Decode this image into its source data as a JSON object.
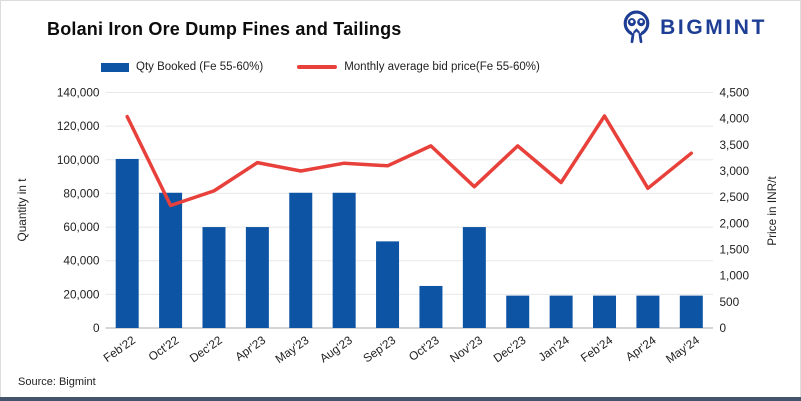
{
  "header": {
    "title": "Bolani Iron Ore Dump Fines and Tailings",
    "brand_name": "BIGMINT"
  },
  "chart_data": {
    "type": "combo",
    "title": "Bolani Iron Ore Dump Fines and Tailings",
    "categories": [
      "Feb'22",
      "Oct'22",
      "Dec'22",
      "Apr'23",
      "May'23",
      "Aug'23",
      "Sep'23",
      "Oct'23",
      "Nov'23",
      "Dec'23",
      "Jan'24",
      "Feb'24",
      "Apr'24",
      "May'24"
    ],
    "series": [
      {
        "name": "Qty Booked (Fe 55-60%)",
        "type": "bar",
        "axis": "left",
        "color": "#0d54a4",
        "values": [
          100500,
          80400,
          60000,
          60000,
          80400,
          80400,
          51500,
          25000,
          60000,
          19250,
          19250,
          19250,
          19250,
          19250
        ]
      },
      {
        "name": "Monthly average bid price(Fe 55-60%)",
        "type": "line",
        "axis": "right",
        "color": "#e8403a",
        "values": [
          4040,
          2340,
          2620,
          3160,
          3000,
          3150,
          3100,
          3480,
          2700,
          3480,
          2780,
          4050,
          2670,
          3340
        ]
      }
    ],
    "left_axis": {
      "label": "Quantity in t",
      "min": 0,
      "max": 140000,
      "tick_step": 20000
    },
    "right_axis": {
      "label": "Price in INR/t",
      "min": 0,
      "max": 4500,
      "tick_step": 500
    },
    "grid": true,
    "legend_position": "top"
  },
  "footer": {
    "source": "Source: Bigmint"
  },
  "colors": {
    "bar": "#0d54a4",
    "line": "#e8403a",
    "brand_navy": "#1e3e95",
    "footer_stripe": "#44546a",
    "gridline": "#e8e8e8"
  }
}
